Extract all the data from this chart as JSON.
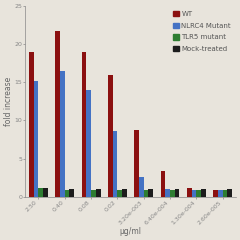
{
  "categories": [
    "2.50",
    "0.40",
    "0.08",
    "0.02",
    "3.20e-003",
    "6.40e-004",
    "1.30e-004",
    "2.60e-005"
  ],
  "wt": [
    19.0,
    21.8,
    19.0,
    16.0,
    8.8,
    3.4,
    1.1,
    0.9
  ],
  "nlrc4": [
    15.2,
    16.5,
    14.0,
    8.6,
    2.6,
    1.0,
    0.9,
    0.9
  ],
  "tlr5": [
    1.1,
    0.9,
    0.9,
    0.9,
    0.9,
    0.9,
    0.9,
    0.9
  ],
  "mock": [
    1.1,
    1.0,
    1.0,
    1.0,
    1.0,
    1.0,
    1.0,
    1.0
  ],
  "wt_color": "#8B1010",
  "nlrc4_color": "#4472C4",
  "tlr5_color": "#2E7D32",
  "mock_color": "#1C1C1C",
  "bg_color": "#E8E4DC",
  "ylabel": "fold increase",
  "xlabel": "μg/ml",
  "ylim": [
    0,
    25
  ],
  "yticks": [
    0,
    5,
    10,
    15,
    20,
    25
  ],
  "legend_labels": [
    "WT",
    "NLRC4 Mutant",
    "TLR5 mutant",
    "Mock-treated"
  ],
  "axis_fontsize": 5.5,
  "tick_fontsize": 4.5,
  "legend_fontsize": 5.0
}
